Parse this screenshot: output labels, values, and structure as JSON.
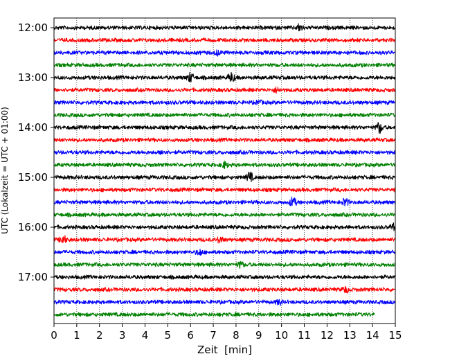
{
  "chart_data": {
    "type": "line",
    "chart_kind": "helicorder (seismogram drum plot)",
    "title": "",
    "xlabel": "Zeit  [min]",
    "ylabel": "UTC (Lokalzeit = UTC + 01:00)",
    "xlim": [
      0,
      15
    ],
    "x_ticks": [
      0,
      1,
      2,
      3,
      4,
      5,
      6,
      7,
      8,
      9,
      10,
      11,
      12,
      13,
      14,
      15
    ],
    "x_tick_labels": [
      "0",
      "1",
      "2",
      "3",
      "4",
      "5",
      "6",
      "7",
      "8",
      "9",
      "10",
      "11",
      "12",
      "13",
      "14",
      "15"
    ],
    "y_tick_labels": [
      "12:00",
      "13:00",
      "14:00",
      "15:00",
      "16:00",
      "17:00"
    ],
    "grid": "vertical dotted at each minute",
    "legend": "none",
    "trace_colors_cycle": [
      "#000000",
      "#ff0000",
      "#0000ff",
      "#008000"
    ],
    "traces": [
      {
        "start": "12:00",
        "color": "#000000",
        "x_end": 15,
        "events": [
          {
            "x": 10.8,
            "amp": 0.6
          }
        ]
      },
      {
        "start": "12:15",
        "color": "#ff0000",
        "x_end": 15,
        "events": []
      },
      {
        "start": "12:30",
        "color": "#0000ff",
        "x_end": 15,
        "events": [
          {
            "x": 7.2,
            "amp": 0.4
          }
        ]
      },
      {
        "start": "12:45",
        "color": "#008000",
        "x_end": 15,
        "events": []
      },
      {
        "start": "13:00",
        "color": "#000000",
        "x_end": 15,
        "events": [
          {
            "x": 6.0,
            "amp": 0.8
          },
          {
            "x": 7.8,
            "amp": 0.8
          }
        ]
      },
      {
        "start": "13:15",
        "color": "#ff0000",
        "x_end": 15,
        "events": [
          {
            "x": 9.8,
            "amp": 0.4
          }
        ]
      },
      {
        "start": "13:30",
        "color": "#0000ff",
        "x_end": 15,
        "events": [
          {
            "x": 9.0,
            "amp": 0.3
          }
        ]
      },
      {
        "start": "13:45",
        "color": "#008000",
        "x_end": 15,
        "events": []
      },
      {
        "start": "14:00",
        "color": "#000000",
        "x_end": 15,
        "events": [
          {
            "x": 14.3,
            "amp": 1.0
          }
        ]
      },
      {
        "start": "14:15",
        "color": "#ff0000",
        "x_end": 15,
        "events": []
      },
      {
        "start": "14:30",
        "color": "#0000ff",
        "x_end": 15,
        "events": [
          {
            "x": 4.8,
            "amp": 0.4
          }
        ]
      },
      {
        "start": "14:45",
        "color": "#008000",
        "x_end": 15,
        "events": [
          {
            "x": 7.5,
            "amp": 0.5
          }
        ]
      },
      {
        "start": "15:00",
        "color": "#000000",
        "x_end": 15,
        "events": [
          {
            "x": 8.6,
            "amp": 0.9
          }
        ]
      },
      {
        "start": "15:15",
        "color": "#ff0000",
        "x_end": 15,
        "events": []
      },
      {
        "start": "15:30",
        "color": "#0000ff",
        "x_end": 15,
        "events": [
          {
            "x": 10.5,
            "amp": 0.9
          },
          {
            "x": 12.8,
            "amp": 0.7
          }
        ]
      },
      {
        "start": "15:45",
        "color": "#008000",
        "x_end": 15,
        "events": []
      },
      {
        "start": "16:00",
        "color": "#000000",
        "x_end": 15,
        "events": [
          {
            "x": 14.9,
            "amp": 0.5
          }
        ]
      },
      {
        "start": "16:15",
        "color": "#ff0000",
        "x_end": 15,
        "events": [
          {
            "x": 0.4,
            "amp": 0.8
          },
          {
            "x": 7.3,
            "amp": 0.5
          }
        ]
      },
      {
        "start": "16:30",
        "color": "#0000ff",
        "x_end": 15,
        "events": [
          {
            "x": 6.4,
            "amp": 0.5
          }
        ]
      },
      {
        "start": "16:45",
        "color": "#008000",
        "x_end": 15,
        "events": [
          {
            "x": 8.2,
            "amp": 0.5
          }
        ]
      },
      {
        "start": "17:00",
        "color": "#000000",
        "x_end": 15,
        "events": []
      },
      {
        "start": "17:15",
        "color": "#ff0000",
        "x_end": 15,
        "events": [
          {
            "x": 12.8,
            "amp": 0.5
          }
        ]
      },
      {
        "start": "17:30",
        "color": "#0000ff",
        "x_end": 15,
        "events": [
          {
            "x": 9.9,
            "amp": 0.4
          }
        ]
      },
      {
        "start": "17:45",
        "color": "#008000",
        "x_end": 14.1,
        "events": []
      }
    ]
  }
}
